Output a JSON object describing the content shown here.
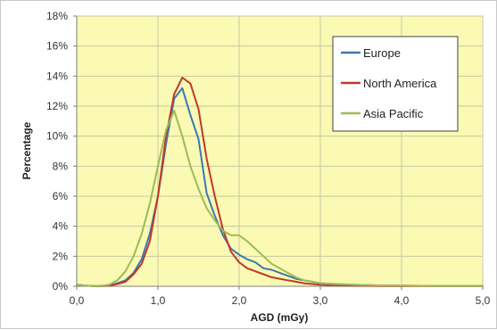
{
  "chart_data": {
    "type": "line",
    "title": "",
    "xlabel": "AGD (mGy)",
    "ylabel": "Percentage",
    "xlim": [
      0,
      5
    ],
    "ylim": [
      0,
      0.18
    ],
    "x_ticks": [
      0,
      1,
      2,
      3,
      4,
      5
    ],
    "x_tick_labels": [
      "0,0",
      "1,0",
      "2,0",
      "3,0",
      "4,0",
      "5,0"
    ],
    "y_ticks": [
      0,
      0.02,
      0.04,
      0.06,
      0.08,
      0.1,
      0.12,
      0.14,
      0.16,
      0.18
    ],
    "y_tick_labels": [
      "0%",
      "2%",
      "4%",
      "6%",
      "8%",
      "10%",
      "12%",
      "14%",
      "16%",
      "18%"
    ],
    "grid": true,
    "plot_background": "#fafab4",
    "gridline_color": "#c8c8a0",
    "legend_position": "top-right",
    "series": [
      {
        "name": "Europe",
        "color": "#3c78b4",
        "x": [
          0.0,
          0.1,
          0.2,
          0.3,
          0.4,
          0.5,
          0.6,
          0.7,
          0.8,
          0.9,
          1.0,
          1.1,
          1.2,
          1.3,
          1.4,
          1.5,
          1.6,
          1.7,
          1.8,
          1.9,
          2.0,
          2.1,
          2.2,
          2.3,
          2.4,
          2.5,
          2.6,
          2.7,
          2.8,
          2.9,
          3.0,
          3.2,
          3.4,
          3.6,
          3.8,
          4.0,
          4.5,
          5.0
        ],
        "y": [
          0.001,
          0.0005,
          0.0002,
          0.0002,
          0.0005,
          0.002,
          0.004,
          0.009,
          0.018,
          0.035,
          0.06,
          0.095,
          0.125,
          0.132,
          0.114,
          0.098,
          0.062,
          0.047,
          0.034,
          0.025,
          0.021,
          0.018,
          0.016,
          0.012,
          0.011,
          0.009,
          0.007,
          0.005,
          0.004,
          0.003,
          0.002,
          0.0015,
          0.001,
          0.0008,
          0.0005,
          0.0004,
          0.0002,
          0.0001
        ]
      },
      {
        "name": "North America",
        "color": "#c0392b",
        "x": [
          0.0,
          0.1,
          0.2,
          0.3,
          0.4,
          0.5,
          0.6,
          0.7,
          0.8,
          0.9,
          1.0,
          1.1,
          1.2,
          1.3,
          1.4,
          1.5,
          1.6,
          1.7,
          1.8,
          1.9,
          2.0,
          2.1,
          2.2,
          2.3,
          2.4,
          2.5,
          2.6,
          2.7,
          2.8,
          2.9,
          3.0,
          3.2,
          3.4,
          3.6,
          3.8,
          4.0,
          4.5,
          5.0
        ],
        "y": [
          0.001,
          0.0005,
          0.0002,
          0.0002,
          0.0004,
          0.0015,
          0.003,
          0.008,
          0.015,
          0.03,
          0.06,
          0.1,
          0.128,
          0.139,
          0.135,
          0.118,
          0.085,
          0.06,
          0.038,
          0.023,
          0.016,
          0.012,
          0.01,
          0.008,
          0.006,
          0.005,
          0.004,
          0.003,
          0.002,
          0.0015,
          0.001,
          0.0008,
          0.0005,
          0.0003,
          0.0002,
          0.0001,
          0.0001,
          0.0001
        ]
      },
      {
        "name": "Asia Pacific",
        "color": "#9bbb59",
        "x": [
          0.0,
          0.1,
          0.2,
          0.3,
          0.4,
          0.5,
          0.6,
          0.7,
          0.8,
          0.9,
          1.0,
          1.1,
          1.2,
          1.3,
          1.4,
          1.5,
          1.6,
          1.7,
          1.8,
          1.9,
          2.0,
          2.1,
          2.2,
          2.3,
          2.4,
          2.5,
          2.6,
          2.7,
          2.8,
          2.9,
          3.0,
          3.2,
          3.4,
          3.6,
          3.8,
          4.0,
          4.5,
          5.0
        ],
        "y": [
          0.001,
          0.0005,
          0.0002,
          0.0003,
          0.001,
          0.004,
          0.01,
          0.02,
          0.035,
          0.055,
          0.08,
          0.104,
          0.117,
          0.1,
          0.08,
          0.065,
          0.052,
          0.044,
          0.037,
          0.034,
          0.034,
          0.03,
          0.025,
          0.02,
          0.015,
          0.012,
          0.009,
          0.006,
          0.004,
          0.003,
          0.002,
          0.0015,
          0.001,
          0.0008,
          0.0005,
          0.0004,
          0.0002,
          0.0001
        ]
      }
    ]
  }
}
